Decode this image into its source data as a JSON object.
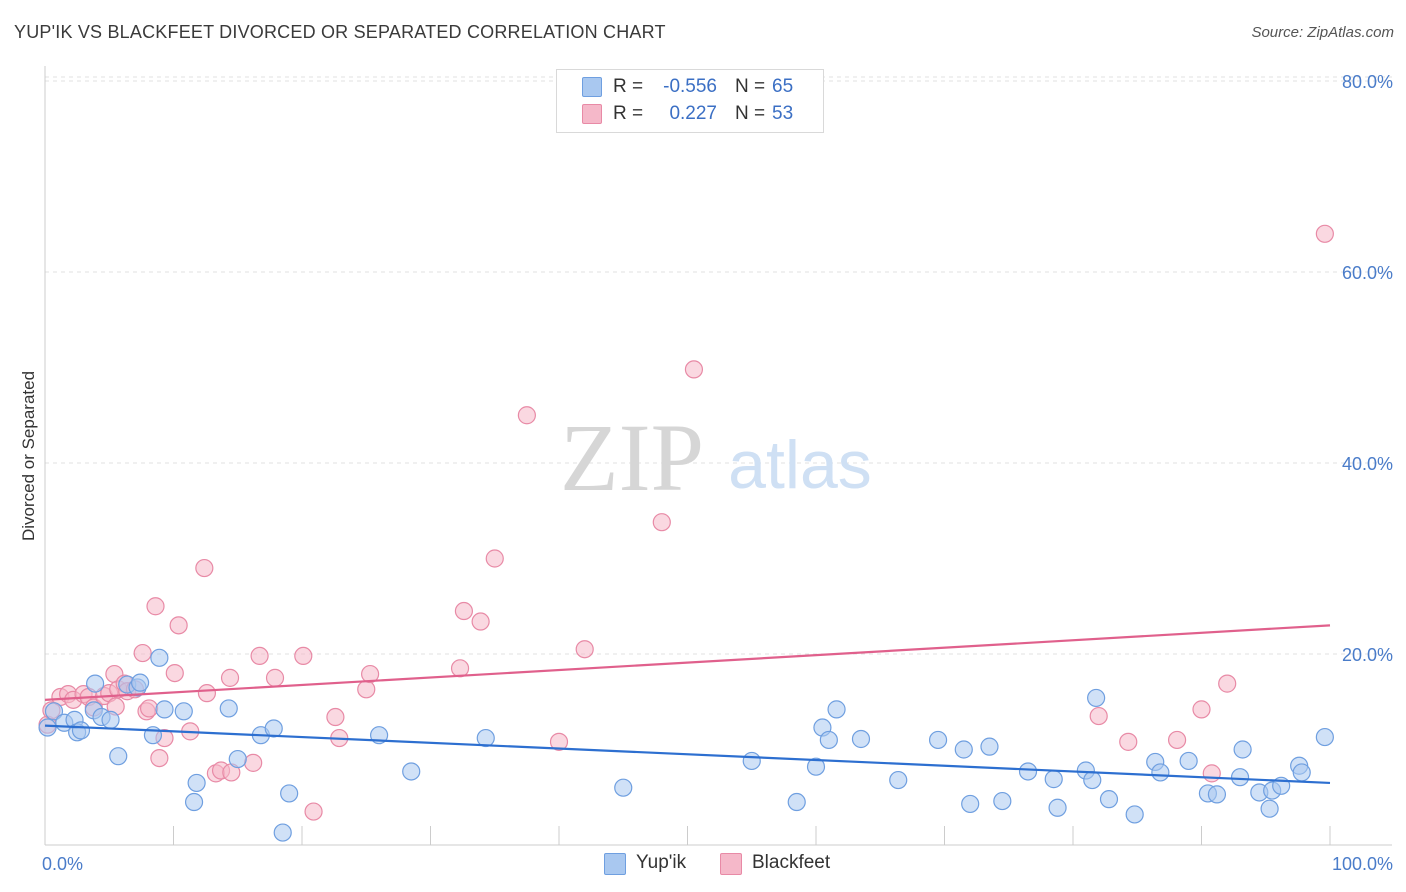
{
  "header": {
    "title": "YUP'IK VS BLACKFEET DIVORCED OR SEPARATED CORRELATION CHART",
    "source": "Source: ZipAtlas.com"
  },
  "watermark": {
    "zip": "ZIP",
    "atlas": "atlas"
  },
  "legend": {
    "r_label": "R =",
    "n_label": "N =",
    "rows": [
      {
        "r": "-0.556",
        "n": "65"
      },
      {
        "r": "0.227",
        "n": "53"
      }
    ]
  },
  "colors": {
    "yupik_fill": "#a9c8f0",
    "yupik_stroke": "#6f9fe0",
    "yupik_line": "#2d6fd0",
    "blackfeet_fill": "#f5b8c9",
    "blackfeet_stroke": "#e88aa6",
    "blackfeet_line": "#e0608c",
    "grid": "#e0e0e0",
    "axis_text": "#4a7cc9"
  },
  "chart_data": {
    "type": "scatter",
    "title": "YUP'IK VS BLACKFEET DIVORCED OR SEPARATED CORRELATION CHART",
    "xlabel": "",
    "ylabel": "Divorced or Separated",
    "xlim": [
      0,
      100
    ],
    "ylim": [
      0,
      84
    ],
    "x_tick_labels": [
      "0.0%",
      "100.0%"
    ],
    "y_ticks": [
      20,
      40,
      60,
      80
    ],
    "y_tick_labels": [
      "20.0%",
      "40.0%",
      "60.0%",
      "80.0%"
    ],
    "grid": true,
    "legend_position": "top-center",
    "series": [
      {
        "name": "Yup'ik",
        "r": -0.556,
        "n": 65,
        "trend": {
          "x": [
            0,
            100
          ],
          "y": [
            12.5,
            6.5
          ]
        },
        "points": [
          [
            0.2,
            12.3
          ],
          [
            0.7,
            14.0
          ],
          [
            1.5,
            12.8
          ],
          [
            2.3,
            13.1
          ],
          [
            2.5,
            11.8
          ],
          [
            2.8,
            12.0
          ],
          [
            3.8,
            14.1
          ],
          [
            3.9,
            16.9
          ],
          [
            4.4,
            13.4
          ],
          [
            5.1,
            13.1
          ],
          [
            5.7,
            9.3
          ],
          [
            6.4,
            16.8
          ],
          [
            7.2,
            16.5
          ],
          [
            7.4,
            17.0
          ],
          [
            8.4,
            11.5
          ],
          [
            8.9,
            19.6
          ],
          [
            9.3,
            14.2
          ],
          [
            10.8,
            14.0
          ],
          [
            11.6,
            4.5
          ],
          [
            11.8,
            6.5
          ],
          [
            14.3,
            14.3
          ],
          [
            15.0,
            9.0
          ],
          [
            16.8,
            11.5
          ],
          [
            17.8,
            12.2
          ],
          [
            18.5,
            1.3
          ],
          [
            19.0,
            5.4
          ],
          [
            26.0,
            11.5
          ],
          [
            28.5,
            7.7
          ],
          [
            34.3,
            11.2
          ],
          [
            45.0,
            6.0
          ],
          [
            55.0,
            8.8
          ],
          [
            58.5,
            4.5
          ],
          [
            60.0,
            8.2
          ],
          [
            60.5,
            12.3
          ],
          [
            61.0,
            11.0
          ],
          [
            61.6,
            14.2
          ],
          [
            63.5,
            11.1
          ],
          [
            66.4,
            6.8
          ],
          [
            69.5,
            11.0
          ],
          [
            71.5,
            10.0
          ],
          [
            72.0,
            4.3
          ],
          [
            73.5,
            10.3
          ],
          [
            74.5,
            4.6
          ],
          [
            76.5,
            7.7
          ],
          [
            78.5,
            6.9
          ],
          [
            78.8,
            3.9
          ],
          [
            81.0,
            7.8
          ],
          [
            81.5,
            6.8
          ],
          [
            81.8,
            15.4
          ],
          [
            82.8,
            4.8
          ],
          [
            84.8,
            3.2
          ],
          [
            86.4,
            8.7
          ],
          [
            86.8,
            7.6
          ],
          [
            89.0,
            8.8
          ],
          [
            90.5,
            5.4
          ],
          [
            91.2,
            5.3
          ],
          [
            93.0,
            7.1
          ],
          [
            93.2,
            10.0
          ],
          [
            94.5,
            5.5
          ],
          [
            95.3,
            3.8
          ],
          [
            95.5,
            5.7
          ],
          [
            96.2,
            6.2
          ],
          [
            97.6,
            8.3
          ],
          [
            97.8,
            7.6
          ],
          [
            99.6,
            11.3
          ]
        ]
      },
      {
        "name": "Blackfeet",
        "r": 0.227,
        "n": 53,
        "trend": {
          "x": [
            0,
            100
          ],
          "y": [
            15.2,
            23.0
          ]
        },
        "points": [
          [
            0.2,
            12.6
          ],
          [
            0.5,
            14.1
          ],
          [
            1.2,
            15.5
          ],
          [
            1.8,
            15.8
          ],
          [
            2.2,
            15.2
          ],
          [
            3.0,
            15.8
          ],
          [
            3.4,
            15.5
          ],
          [
            3.8,
            14.4
          ],
          [
            4.6,
            15.6
          ],
          [
            5.0,
            15.9
          ],
          [
            5.4,
            17.9
          ],
          [
            5.5,
            14.5
          ],
          [
            5.7,
            16.3
          ],
          [
            6.2,
            16.9
          ],
          [
            6.4,
            16.1
          ],
          [
            7.0,
            16.3
          ],
          [
            7.6,
            20.1
          ],
          [
            7.9,
            14.0
          ],
          [
            8.1,
            14.3
          ],
          [
            8.6,
            25.0
          ],
          [
            8.9,
            9.1
          ],
          [
            9.3,
            11.2
          ],
          [
            10.1,
            18.0
          ],
          [
            10.4,
            23.0
          ],
          [
            11.3,
            11.9
          ],
          [
            12.4,
            29.0
          ],
          [
            12.6,
            15.9
          ],
          [
            13.3,
            7.5
          ],
          [
            13.7,
            7.8
          ],
          [
            14.4,
            17.5
          ],
          [
            14.5,
            7.6
          ],
          [
            16.2,
            8.6
          ],
          [
            16.7,
            19.8
          ],
          [
            17.9,
            17.5
          ],
          [
            20.1,
            19.8
          ],
          [
            20.9,
            3.5
          ],
          [
            22.6,
            13.4
          ],
          [
            22.9,
            11.2
          ],
          [
            25.0,
            16.3
          ],
          [
            25.3,
            17.9
          ],
          [
            32.3,
            18.5
          ],
          [
            32.6,
            24.5
          ],
          [
            33.9,
            23.4
          ],
          [
            35.0,
            30.0
          ],
          [
            40.0,
            10.8
          ],
          [
            42.0,
            20.5
          ],
          [
            48.0,
            33.8
          ],
          [
            50.5,
            49.8
          ],
          [
            82.0,
            13.5
          ],
          [
            84.3,
            10.8
          ],
          [
            88.1,
            11.0
          ],
          [
            90.0,
            14.2
          ],
          [
            92.0,
            16.9
          ]
        ],
        "extra_points": [
          [
            99.6,
            64.0
          ],
          [
            90.8,
            7.5
          ],
          [
            37.5,
            45.0
          ]
        ]
      }
    ]
  },
  "bottom_legend": [
    {
      "label": "Yup'ik"
    },
    {
      "label": "Blackfeet"
    }
  ]
}
